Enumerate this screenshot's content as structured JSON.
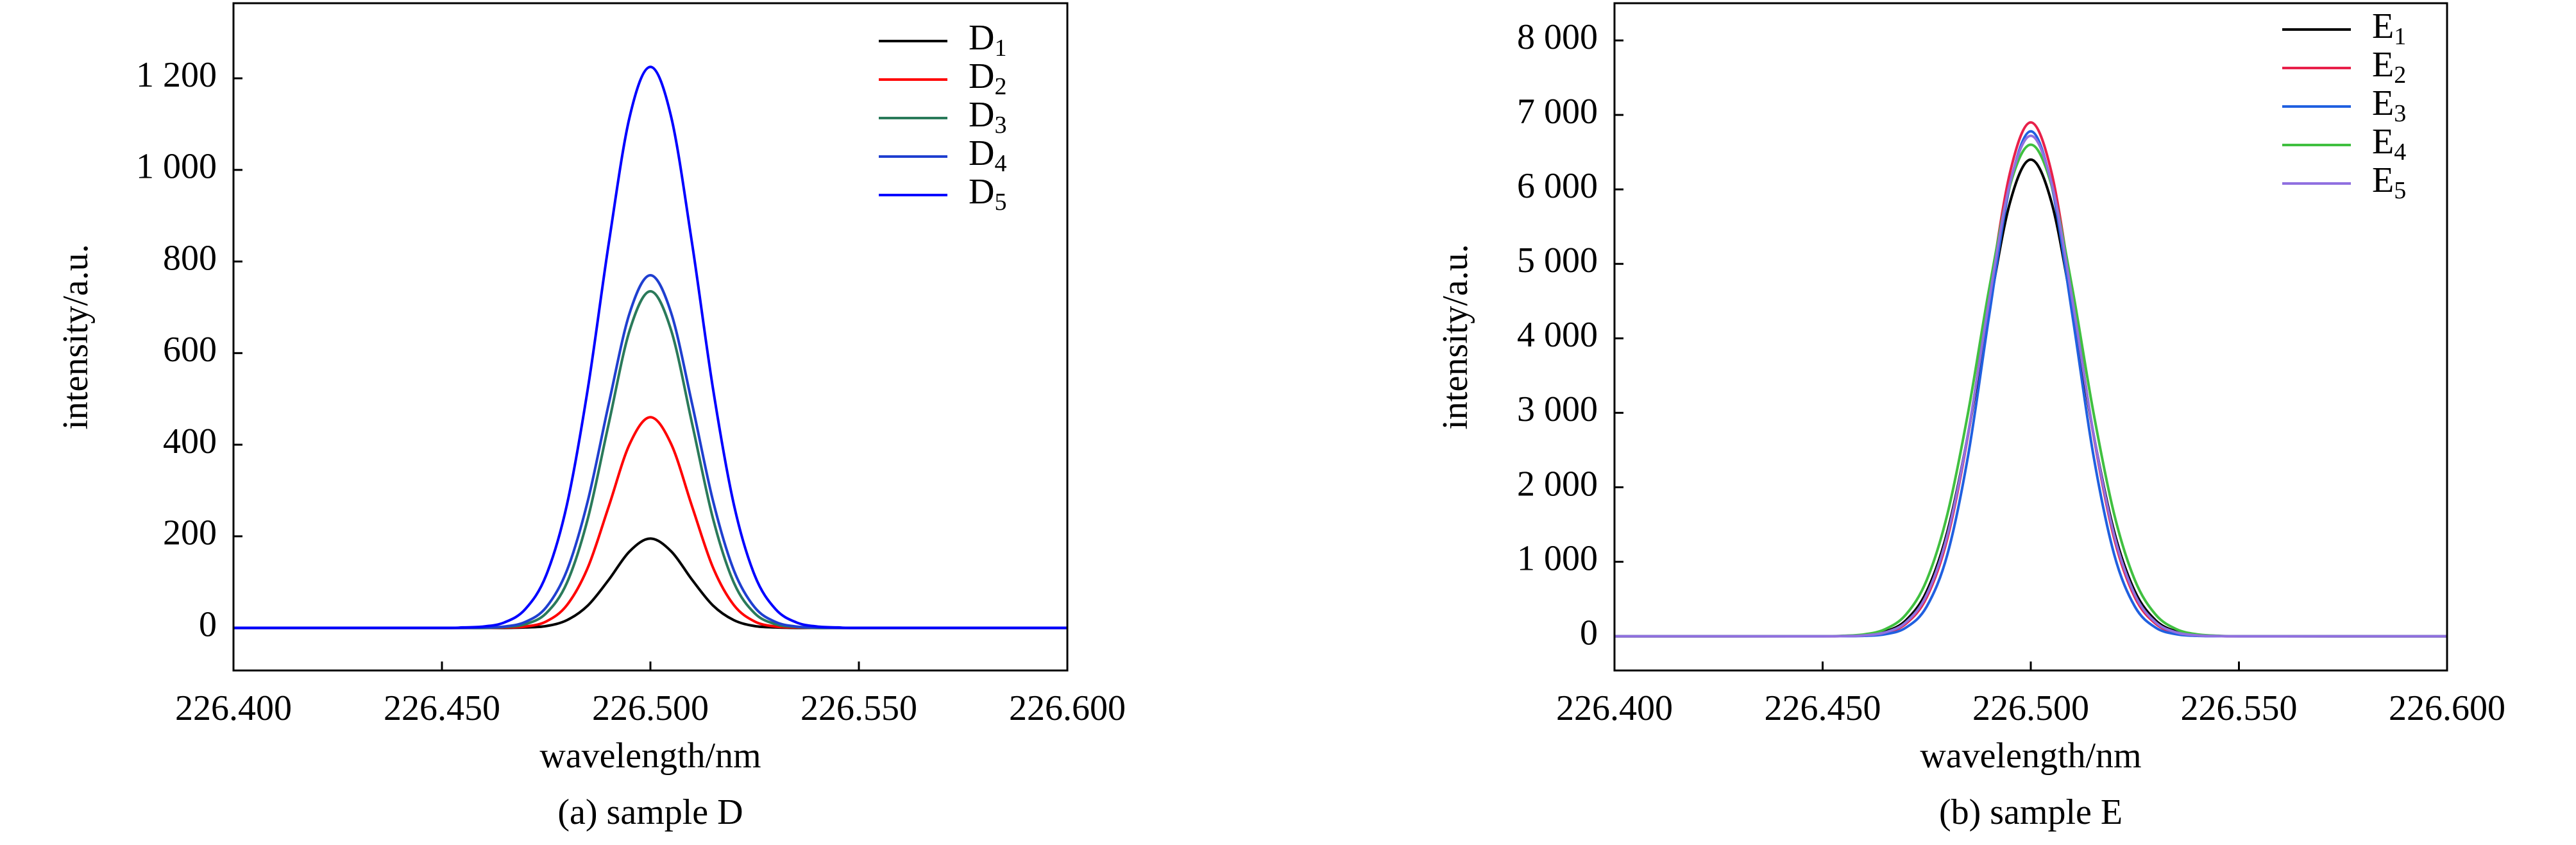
{
  "chart_data": [
    {
      "type": "line",
      "legend": "upper right",
      "x": [
        226.4,
        226.45,
        226.455,
        226.46,
        226.465,
        226.47,
        226.475,
        226.48,
        226.485,
        226.49,
        226.495,
        226.5,
        226.505,
        226.51,
        226.515,
        226.52,
        226.525,
        226.53,
        226.535,
        226.54,
        226.545,
        226.55,
        226.6
      ],
      "series": [
        {
          "name": "D1",
          "color": "#000000",
          "values": [
            0,
            0,
            0,
            0,
            0,
            1,
            4,
            17,
            49,
            105,
            167,
            195,
            167,
            105,
            49,
            17,
            4,
            1,
            0,
            0,
            0,
            0,
            0
          ]
        },
        {
          "name": "D2",
          "color": "#ff0000",
          "values": [
            0,
            0,
            0,
            0,
            1,
            3,
            14,
            50,
            132,
            265,
            401,
            460,
            401,
            265,
            132,
            50,
            14,
            3,
            1,
            0,
            0,
            0,
            0
          ]
        },
        {
          "name": "D3",
          "color": "#2a7a5a",
          "values": [
            0,
            0,
            0,
            0,
            2,
            8,
            32,
            99,
            239,
            446,
            649,
            735,
            649,
            446,
            239,
            99,
            32,
            8,
            2,
            0,
            0,
            0,
            0
          ]
        },
        {
          "name": "D4",
          "color": "#1f3fd0",
          "values": [
            0,
            0,
            0,
            1,
            3,
            13,
            45,
            126,
            278,
            489,
            687,
            770,
            687,
            489,
            278,
            126,
            45,
            13,
            3,
            1,
            0,
            0,
            0
          ]
        },
        {
          "name": "D5",
          "color": "#0000ff",
          "values": [
            0,
            0,
            1,
            3,
            12,
            41,
            115,
            270,
            523,
            839,
            1115,
            1225,
            1115,
            839,
            523,
            270,
            115,
            41,
            12,
            3,
            1,
            0,
            0
          ]
        }
      ],
      "xlim": [
        226.4,
        226.6
      ],
      "ylim": [
        -93,
        1364
      ],
      "xticks": [
        {
          "value": 226.4,
          "label": "226.400"
        },
        {
          "value": 226.45,
          "label": "226.450"
        },
        {
          "value": 226.5,
          "label": "226.500"
        },
        {
          "value": 226.55,
          "label": "226.550"
        },
        {
          "value": 226.6,
          "label": "226.600"
        }
      ],
      "yticks": [
        0,
        200,
        400,
        600,
        800,
        {
          "value": 1000,
          "label": "1 000"
        },
        {
          "value": 1200,
          "label": "1 200"
        }
      ],
      "xlabel": "wavelength/nm",
      "ylabel": "intensity/a.u.",
      "caption": "(a) sample D"
    },
    {
      "type": "line",
      "legend": "upper right",
      "x": [
        226.4,
        226.45,
        226.455,
        226.46,
        226.465,
        226.47,
        226.475,
        226.48,
        226.485,
        226.49,
        226.495,
        226.5,
        226.505,
        226.51,
        226.515,
        226.52,
        226.525,
        226.53,
        226.535,
        226.54,
        226.545,
        226.55,
        226.6
      ],
      "series": [
        {
          "name": "E1",
          "color": "#000000",
          "values": [
            0,
            1,
            3,
            15,
            62,
            213,
            603,
            1411,
            2734,
            4385,
            5823,
            6400,
            5823,
            4385,
            2734,
            1411,
            603,
            213,
            62,
            15,
            3,
            1,
            0
          ]
        },
        {
          "name": "E2",
          "color": "#e8204a",
          "values": [
            0,
            0,
            2,
            9,
            44,
            168,
            522,
            1321,
            2723,
            4564,
            6223,
            6900,
            6223,
            4564,
            2723,
            1321,
            522,
            168,
            44,
            9,
            2,
            0,
            0
          ]
        },
        {
          "name": "E3",
          "color": "#2060e0",
          "values": [
            0,
            0,
            1,
            5,
            26,
            115,
            398,
            1105,
            2444,
            4308,
            6053,
            6780,
            6053,
            4308,
            2444,
            1105,
            398,
            115,
            26,
            5,
            1,
            0,
            0
          ]
        },
        {
          "name": "E4",
          "color": "#40c040",
          "values": [
            0,
            1,
            6,
            25,
            94,
            290,
            754,
            1646,
            3021,
            4664,
            6052,
            6600,
            6052,
            4664,
            3021,
            1646,
            754,
            290,
            94,
            25,
            6,
            1,
            0
          ]
        },
        {
          "name": "E5",
          "color": "#9070e0",
          "values": [
            0,
            0,
            2,
            11,
            51,
            186,
            557,
            1365,
            2742,
            4512,
            6083,
            6720,
            6083,
            4512,
            2742,
            1365,
            557,
            186,
            51,
            11,
            2,
            0,
            0
          ]
        }
      ],
      "xlim": [
        226.4,
        226.6
      ],
      "ylim": [
        -460,
        8500
      ],
      "xticks": [
        {
          "value": 226.4,
          "label": "226.400"
        },
        {
          "value": 226.45,
          "label": "226.450"
        },
        {
          "value": 226.5,
          "label": "226.500"
        },
        {
          "value": 226.55,
          "label": "226.550"
        },
        {
          "value": 226.6,
          "label": "226.600"
        }
      ],
      "yticks": [
        0,
        {
          "value": 1000,
          "label": "1 000"
        },
        {
          "value": 2000,
          "label": "2 000"
        },
        {
          "value": 3000,
          "label": "3 000"
        },
        {
          "value": 4000,
          "label": "4 000"
        },
        {
          "value": 5000,
          "label": "5 000"
        },
        {
          "value": 6000,
          "label": "6 000"
        },
        {
          "value": 7000,
          "label": "7 000"
        },
        {
          "value": 8000,
          "label": "8 000"
        }
      ],
      "xlabel": "wavelength/nm",
      "ylabel": "intensity/a.u.",
      "caption": "(b) sample E"
    }
  ]
}
